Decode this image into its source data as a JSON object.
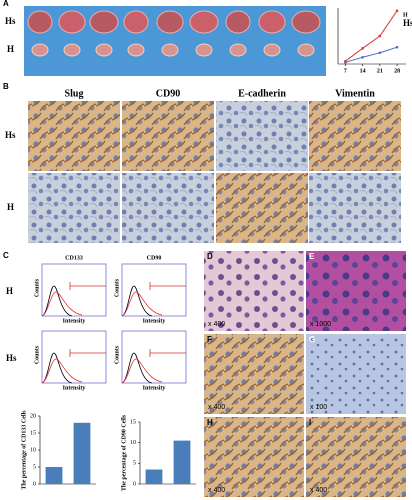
{
  "figure": {
    "panels": [
      "A",
      "B",
      "C",
      "D",
      "E",
      "F",
      "G",
      "H",
      "I"
    ],
    "panel_a": {
      "row_labels": [
        "Hs",
        "H"
      ]
    },
    "panel_b": {
      "columns": [
        "Slug",
        "CD90",
        "E-cadherin",
        "Vimentin"
      ],
      "rows": [
        "Hs",
        "H"
      ]
    },
    "panel_c": {
      "columns": [
        "CD133",
        "CD90"
      ],
      "rows": [
        "H",
        "Hs"
      ],
      "y_label": "Counts",
      "x_label": "Intensity"
    },
    "panel_di": {
      "magnifications": [
        "x 400",
        "x 1000",
        "x 400",
        "x 100",
        "x 400",
        "x 400"
      ]
    }
  },
  "chart_data": [
    {
      "type": "line",
      "x": [
        7,
        14,
        21,
        28
      ],
      "xlim": [
        4,
        30
      ],
      "xticks": [
        7,
        14,
        21,
        28
      ],
      "ylim": [
        0,
        1
      ],
      "series": [
        {
          "name": "H",
          "color": "#4a6fc0",
          "values": [
            0.03,
            0.12,
            0.2,
            0.3
          ]
        },
        {
          "name": "Hs",
          "color": "#d63a3a",
          "values": [
            0.05,
            0.28,
            0.5,
            0.95
          ]
        }
      ]
    },
    {
      "type": "bar",
      "y_label": "The percentage of CD133 Cells",
      "categories": [
        null,
        null
      ],
      "values": [
        5,
        18
      ],
      "color": "#4a7ebb",
      "ylim": [
        0,
        20
      ],
      "yticks": [
        0,
        5,
        10,
        15,
        20
      ]
    },
    {
      "type": "bar",
      "y_label": "The percentage of CD90 Cells",
      "categories": [
        null,
        null
      ],
      "values": [
        3.5,
        10.5
      ],
      "color": "#4a7ebb",
      "ylim": [
        0,
        15
      ],
      "yticks": [
        0,
        5,
        10,
        15
      ]
    }
  ]
}
